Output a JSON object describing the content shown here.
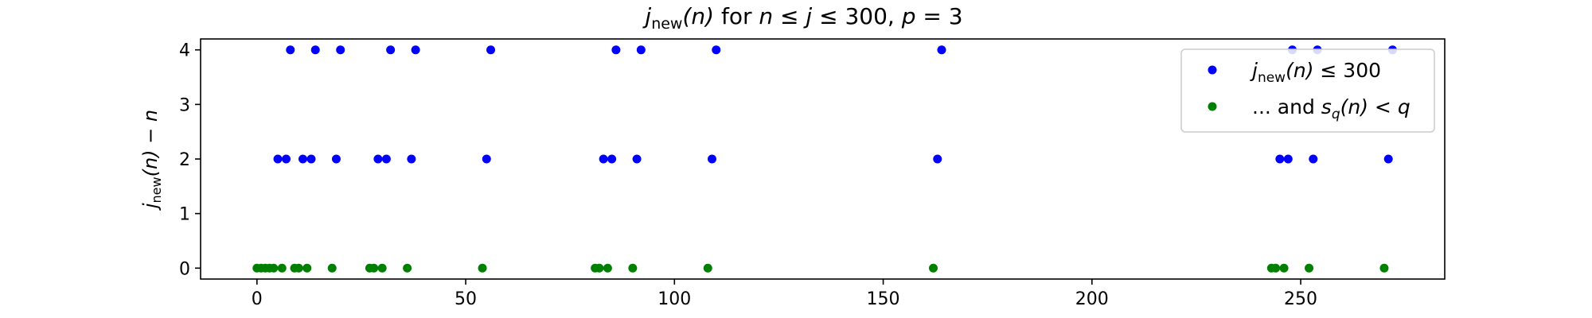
{
  "chart_data": {
    "type": "scatter",
    "title": {
      "fn_main": "j",
      "fn_sub": "new",
      "fn_arg": "(n)",
      "rest_pre": " for ",
      "n": "n",
      "le1": " ≤ ",
      "j": "j",
      "le2": " ≤ 300, ",
      "p": "p",
      "eq": " = 3"
    },
    "ylabel": {
      "fn_main": "j",
      "fn_sub": "new",
      "fn_arg": "(n)",
      "minus": " − ",
      "n": "n"
    },
    "xlim": [
      -13.5,
      284.5
    ],
    "ylim": [
      -0.2,
      4.2
    ],
    "xticks": [
      0,
      50,
      100,
      150,
      200,
      250
    ],
    "yticks": [
      0,
      1,
      2,
      3,
      4
    ],
    "grid": false,
    "legend_position": "upper right",
    "series": [
      {
        "legend": {
          "fn_main": "j",
          "fn_sub": "new",
          "fn_arg": "(n)",
          "rest": " ≤ 300"
        },
        "color": "#0000ff",
        "points": [
          [
            8,
            4
          ],
          [
            14,
            4
          ],
          [
            20,
            4
          ],
          [
            32,
            4
          ],
          [
            38,
            4
          ],
          [
            56,
            4
          ],
          [
            86,
            4
          ],
          [
            92,
            4
          ],
          [
            110,
            4
          ],
          [
            164,
            4
          ],
          [
            248,
            4
          ],
          [
            254,
            4
          ],
          [
            272,
            4
          ],
          [
            5,
            2
          ],
          [
            7,
            2
          ],
          [
            11,
            2
          ],
          [
            13,
            2
          ],
          [
            19,
            2
          ],
          [
            29,
            2
          ],
          [
            31,
            2
          ],
          [
            37,
            2
          ],
          [
            55,
            2
          ],
          [
            83,
            2
          ],
          [
            85,
            2
          ],
          [
            91,
            2
          ],
          [
            109,
            2
          ],
          [
            163,
            2
          ],
          [
            245,
            2
          ],
          [
            247,
            2
          ],
          [
            253,
            2
          ],
          [
            271,
            2
          ]
        ]
      },
      {
        "legend": {
          "prefix": "... and ",
          "s": "s",
          "s_sub": "q",
          "arg": "(n)",
          "lt": " < ",
          "q": "q"
        },
        "color": "#008000",
        "points": [
          [
            0,
            0
          ],
          [
            1,
            0
          ],
          [
            2,
            0
          ],
          [
            3,
            0
          ],
          [
            4,
            0
          ],
          [
            6,
            0
          ],
          [
            9,
            0
          ],
          [
            10,
            0
          ],
          [
            12,
            0
          ],
          [
            18,
            0
          ],
          [
            27,
            0
          ],
          [
            28,
            0
          ],
          [
            30,
            0
          ],
          [
            36,
            0
          ],
          [
            54,
            0
          ],
          [
            81,
            0
          ],
          [
            82,
            0
          ],
          [
            84,
            0
          ],
          [
            90,
            0
          ],
          [
            108,
            0
          ],
          [
            162,
            0
          ],
          [
            243,
            0
          ],
          [
            244,
            0
          ],
          [
            246,
            0
          ],
          [
            252,
            0
          ],
          [
            270,
            0
          ]
        ]
      }
    ]
  }
}
